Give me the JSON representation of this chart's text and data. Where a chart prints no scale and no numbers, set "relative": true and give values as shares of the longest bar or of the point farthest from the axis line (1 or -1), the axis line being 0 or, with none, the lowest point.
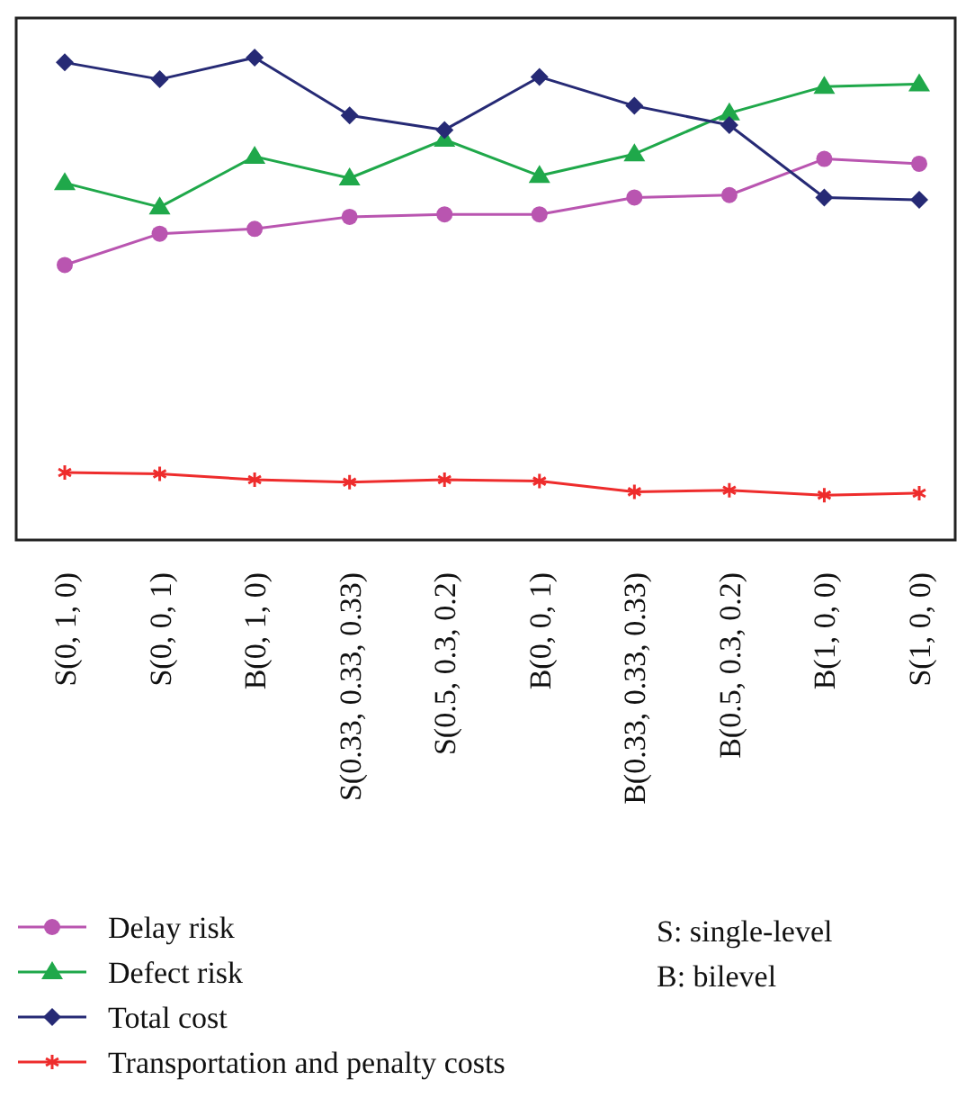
{
  "chart_data": {
    "type": "line",
    "relative": true,
    "categories": [
      "S(0, 1, 0)",
      "S(0, 0, 1)",
      "B(0, 1, 0)",
      "S(0.33, 0.33, 0.33)",
      "S(0.5, 0.3, 0.2)",
      "B(0, 0, 1)",
      "B(0.33, 0.33, 0.33)",
      "B(0.5, 0.3, 0.2)",
      "B(1, 0, 0)",
      "S(1, 0, 0)"
    ],
    "series": [
      {
        "name": "Delay risk",
        "color": "#b955b0",
        "marker": "circle",
        "values": [
          0.57,
          0.635,
          0.645,
          0.67,
          0.675,
          0.675,
          0.71,
          0.715,
          0.79,
          0.78
        ]
      },
      {
        "name": "Defect risk",
        "color": "#1fa84a",
        "marker": "triangle",
        "values": [
          0.74,
          0.69,
          0.795,
          0.75,
          0.83,
          0.755,
          0.8,
          0.885,
          0.94,
          0.945
        ]
      },
      {
        "name": "Total cost",
        "color": "#262a75",
        "marker": "diamond",
        "values": [
          0.99,
          0.955,
          1,
          0.88,
          0.85,
          0.96,
          0.9,
          0.86,
          0.71,
          0.705
        ]
      },
      {
        "name": "Transportation and penalty costs",
        "color": "#ee2c2c",
        "marker": "cross",
        "values": [
          0.14,
          0.137,
          0.125,
          0.12,
          0.125,
          0.122,
          0.1,
          0.103,
          0.093,
          0.097
        ]
      }
    ],
    "legend": "bottom left",
    "annotations": [
      "S: single-level",
      "B: bilevel"
    ]
  }
}
